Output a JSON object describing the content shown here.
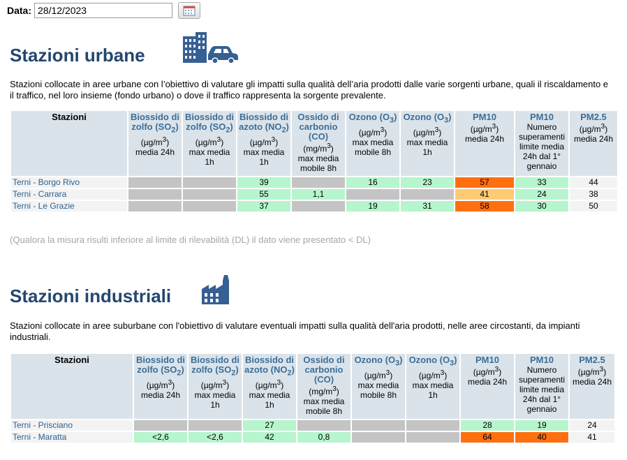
{
  "date": {
    "label": "Data:",
    "value": "28/12/2023"
  },
  "icons": {
    "calendar": "calendar-icon",
    "urban": "buildings-car-icon",
    "industrial": "factory-icon"
  },
  "colors": {
    "title": "#24476f",
    "header_bg": "#dbe3ea",
    "good": "#b6f5cd",
    "moderate": "#ffca74",
    "bad": "#fe6f10",
    "na": "#c4c4c4"
  },
  "urban": {
    "title": "Stazioni urbane",
    "description": "Stazioni collocate in aree urbane con l’obiettivo di valutare gli impatti sulla qualità dell’aria prodotti dalle varie sorgenti urbane, quali il riscaldamento e il traffico, nel loro insieme (fondo urbano) o dove il traffico rappresenta la sorgente prevalente.",
    "headers": [
      {
        "name": "Stazioni"
      },
      {
        "name": "Biossido di zolfo (SO",
        "sub": "2",
        "end": ")",
        "unit": "(µg/m",
        "sup": "3",
        "unit_end": ")",
        "desc": "media 24h"
      },
      {
        "name": "Biossido di zolfo (SO",
        "sub": "2",
        "end": ")",
        "unit": "(µg/m",
        "sup": "3",
        "unit_end": ")",
        "desc": "max media 1h"
      },
      {
        "name": "Biossido di azoto (NO",
        "sub": "2",
        "end": ")",
        "unit": "(µg/m",
        "sup": "3",
        "unit_end": ")",
        "desc": "max media 1h"
      },
      {
        "name": "Ossido di carbonio (CO)",
        "sub": "",
        "end": "",
        "unit": "(mg/m",
        "sup": "3",
        "unit_end": ")",
        "desc": "max media mobile 8h"
      },
      {
        "name": "Ozono (O",
        "sub": "3",
        "end": ")",
        "unit": "(µg/m",
        "sup": "3",
        "unit_end": ")",
        "desc": "max media mobile 8h"
      },
      {
        "name": "Ozono (O",
        "sub": "3",
        "end": ")",
        "unit": "(µg/m",
        "sup": "3",
        "unit_end": ")",
        "desc": "max media 1h"
      },
      {
        "name": "PM10",
        "sub": "",
        "end": "",
        "unit": "(µg/m",
        "sup": "3",
        "unit_end": ")",
        "desc": "media 24h"
      },
      {
        "name": "PM10",
        "sub": "",
        "end": "",
        "unit": "",
        "sup": "",
        "unit_end": "",
        "desc": "Numero superamenti limite media 24h dal 1° gennaio"
      },
      {
        "name": "PM2.5",
        "sub": "",
        "end": "",
        "unit": "(µg/m",
        "sup": "3",
        "unit_end": ")",
        "desc": "media 24h"
      }
    ],
    "rows": [
      {
        "station": "Terni - Borgo Rivo",
        "cells": [
          {
            "v": "",
            "c": "na"
          },
          {
            "v": "",
            "c": "na"
          },
          {
            "v": "39",
            "c": "good"
          },
          {
            "v": "",
            "c": "na"
          },
          {
            "v": "16",
            "c": "good"
          },
          {
            "v": "23",
            "c": "good"
          },
          {
            "v": "57",
            "c": "bad"
          },
          {
            "v": "33",
            "c": "good"
          },
          {
            "v": "44",
            "c": "plain"
          }
        ]
      },
      {
        "station": "Terni - Carrara",
        "cells": [
          {
            "v": "",
            "c": "na"
          },
          {
            "v": "",
            "c": "na"
          },
          {
            "v": "55",
            "c": "good"
          },
          {
            "v": "1,1",
            "c": "good"
          },
          {
            "v": "",
            "c": "na"
          },
          {
            "v": "",
            "c": "na"
          },
          {
            "v": "41",
            "c": "mod"
          },
          {
            "v": "24",
            "c": "good"
          },
          {
            "v": "38",
            "c": "plain"
          }
        ]
      },
      {
        "station": "Terni - Le Grazie",
        "cells": [
          {
            "v": "",
            "c": "na"
          },
          {
            "v": "",
            "c": "na"
          },
          {
            "v": "37",
            "c": "good"
          },
          {
            "v": "",
            "c": "na"
          },
          {
            "v": "19",
            "c": "good"
          },
          {
            "v": "31",
            "c": "good"
          },
          {
            "v": "58",
            "c": "bad"
          },
          {
            "v": "30",
            "c": "good"
          },
          {
            "v": "50",
            "c": "plain"
          }
        ]
      }
    ],
    "note": "(Qualora la misura risulti inferiore al limite di rilevabilità (DL) il dato viene presentato < DL)"
  },
  "industrial": {
    "title": "Stazioni industriali",
    "description": "Stazioni collocate in aree suburbane con l'obiettivo di valutare eventuali impatti sulla qualità dell'aria prodotti, nelle aree circostanti, da impianti industriali.",
    "rows": [
      {
        "station": "Terni - Prisciano",
        "cells": [
          {
            "v": "",
            "c": "na"
          },
          {
            "v": "",
            "c": "na"
          },
          {
            "v": "27",
            "c": "good"
          },
          {
            "v": "",
            "c": "na"
          },
          {
            "v": "",
            "c": "na"
          },
          {
            "v": "",
            "c": "na"
          },
          {
            "v": "28",
            "c": "good"
          },
          {
            "v": "19",
            "c": "good"
          },
          {
            "v": "24",
            "c": "plain"
          }
        ]
      },
      {
        "station": "Terni - Maratta",
        "cells": [
          {
            "v": "<2,6",
            "c": "good"
          },
          {
            "v": "<2,6",
            "c": "good"
          },
          {
            "v": "42",
            "c": "good"
          },
          {
            "v": "0,8",
            "c": "good"
          },
          {
            "v": "",
            "c": "na"
          },
          {
            "v": "",
            "c": "na"
          },
          {
            "v": "64",
            "c": "bad"
          },
          {
            "v": "40",
            "c": "bad"
          },
          {
            "v": "41",
            "c": "plain"
          }
        ]
      }
    ]
  }
}
